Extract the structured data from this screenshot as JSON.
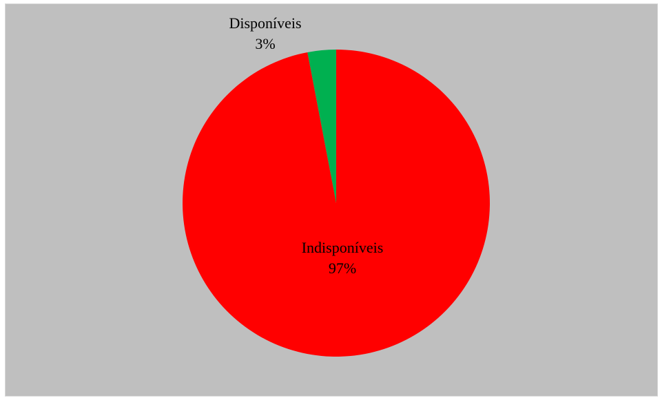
{
  "chart_data": {
    "type": "pie",
    "title": "",
    "slices": [
      {
        "label": "Disponíveis",
        "percent_label": "3%",
        "value": 3,
        "color": "#00b050"
      },
      {
        "label": "Indisponíveis",
        "percent_label": "97%",
        "value": 97,
        "color": "#ff0000"
      }
    ],
    "legend": "none",
    "background": "#bfbfbf"
  }
}
